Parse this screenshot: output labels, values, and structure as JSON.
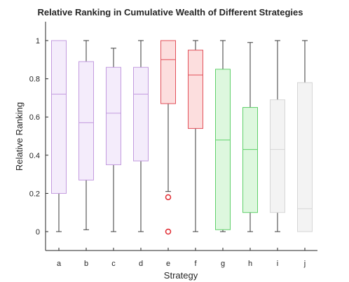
{
  "chart_data": {
    "type": "boxplot",
    "title": "Relative Ranking in Cumulative Wealth of Different Strategies",
    "xlabel": "Strategy",
    "ylabel": "Relative Ranking",
    "ylim": [
      -0.1,
      1.1
    ],
    "yticks": [
      0,
      0.2,
      0.4,
      0.6,
      0.8,
      1
    ],
    "ytick_labels": [
      "0",
      "0.2",
      "0.4",
      "0.6",
      "0.8",
      "1"
    ],
    "grid": false,
    "colors": {
      "purple": {
        "stroke": "#c39bdf",
        "fill": "#f4ecfb"
      },
      "red": {
        "stroke": "#e2505a",
        "fill": "#fcdede"
      },
      "green": {
        "stroke": "#5fd06a",
        "fill": "#ddf7de"
      },
      "grey": {
        "stroke": "#d6d6d6",
        "fill": "#f3f3f3"
      },
      "whisker": "#3a3a3a",
      "outlier": "#e0282f"
    },
    "boxes": [
      {
        "category": "a",
        "min": 0.0,
        "q1": 0.2,
        "median": 0.72,
        "q3": 1.0,
        "max": 1.0,
        "color": "purple",
        "outliers": []
      },
      {
        "category": "b",
        "min": 0.01,
        "q1": 0.27,
        "median": 0.57,
        "q3": 0.89,
        "max": 1.0,
        "color": "purple",
        "outliers": []
      },
      {
        "category": "c",
        "min": 0.0,
        "q1": 0.35,
        "median": 0.62,
        "q3": 0.86,
        "max": 0.96,
        "color": "purple",
        "outliers": []
      },
      {
        "category": "d",
        "min": 0.0,
        "q1": 0.37,
        "median": 0.72,
        "q3": 0.86,
        "max": 1.0,
        "color": "purple",
        "outliers": []
      },
      {
        "category": "e",
        "min": 0.21,
        "q1": 0.67,
        "median": 0.9,
        "q3": 1.0,
        "max": 1.0,
        "color": "red",
        "outliers": [
          0.18,
          0.0
        ]
      },
      {
        "category": "f",
        "min": 0.0,
        "q1": 0.54,
        "median": 0.82,
        "q3": 0.95,
        "max": 1.0,
        "color": "red",
        "outliers": []
      },
      {
        "category": "g",
        "min": 0.0,
        "q1": 0.01,
        "median": 0.48,
        "q3": 0.85,
        "max": 1.0,
        "color": "green",
        "outliers": []
      },
      {
        "category": "h",
        "min": 0.0,
        "q1": 0.1,
        "median": 0.43,
        "q3": 0.65,
        "max": 0.99,
        "color": "green",
        "outliers": []
      },
      {
        "category": "i",
        "min": 0.0,
        "q1": 0.1,
        "median": 0.43,
        "q3": 0.69,
        "max": 1.0,
        "color": "grey",
        "outliers": []
      },
      {
        "category": "j",
        "min": 0.0,
        "q1": 0.0,
        "median": 0.12,
        "q3": 0.78,
        "max": 1.0,
        "color": "grey",
        "outliers": []
      }
    ]
  }
}
